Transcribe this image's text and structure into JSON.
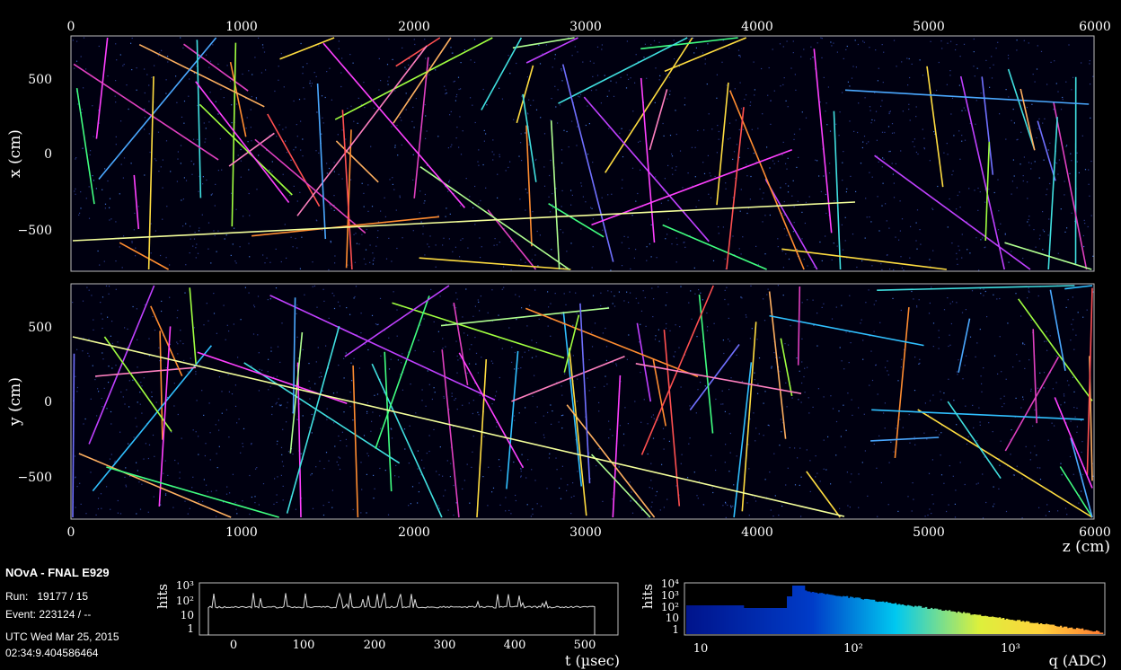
{
  "header": {
    "experiment": "NOvA - FNAL E929",
    "run_line": "Run:   19177 / 15",
    "event_line": "Event: 223124 / --",
    "date_line": "UTC Wed Mar 25, 2015",
    "time_line": "02:34:9.404586464"
  },
  "top_view": {
    "ylabel": "x (cm)",
    "z_ticks_top": [
      "0",
      "1000",
      "2000",
      "3000",
      "4000",
      "5000",
      "6000"
    ],
    "y_ticks": [
      "500",
      "0",
      "−500"
    ]
  },
  "side_view": {
    "ylabel": "y (cm)",
    "z_ticks_bottom": [
      "0",
      "1000",
      "2000",
      "3000",
      "4000",
      "5000",
      "6000"
    ],
    "y_ticks": [
      "500",
      "0",
      "−500"
    ],
    "xlabel": "z (cm)"
  },
  "time_hist": {
    "ylabel": "hits",
    "xlabel": "t (µsec)",
    "x_ticks": [
      "0",
      "100",
      "200",
      "300",
      "400",
      "500"
    ],
    "y_ticks": [
      "10³",
      "10²",
      "10",
      "1"
    ]
  },
  "charge_hist": {
    "ylabel": "hits",
    "xlabel": "q (ADC)",
    "x_ticks": [
      "10",
      "10²",
      "10³"
    ],
    "y_ticks": [
      "10⁴",
      "10³",
      "10²",
      "10",
      "1"
    ]
  },
  "colors": {
    "panel_border": "#bbbbbb",
    "background": "#000000",
    "muon_track": "#f4ff9a"
  }
}
